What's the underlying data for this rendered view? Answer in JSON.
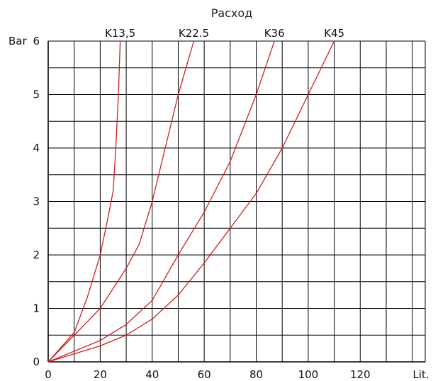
{
  "chart_data": {
    "type": "line",
    "title": "Расход",
    "xlabel": "Lit.",
    "ylabel": "Bar",
    "xlim": [
      0,
      145
    ],
    "ylim": [
      0,
      6
    ],
    "x_ticks": [
      0,
      20,
      40,
      60,
      80,
      100,
      120
    ],
    "y_ticks": [
      0,
      1,
      2,
      3,
      4,
      5,
      6
    ],
    "grid": true,
    "line_color": "#d02020",
    "series": [
      {
        "name": "K13,5",
        "points": [
          [
            0,
            0
          ],
          [
            10,
            0.55
          ],
          [
            15,
            1.2
          ],
          [
            20,
            2.0
          ],
          [
            23,
            2.7
          ],
          [
            25,
            3.2
          ],
          [
            26,
            4
          ],
          [
            27,
            5
          ],
          [
            27.7,
            6
          ]
        ]
      },
      {
        "name": "K22.5",
        "points": [
          [
            0,
            0
          ],
          [
            10,
            0.5
          ],
          [
            20,
            1.0
          ],
          [
            30,
            1.75
          ],
          [
            35,
            2.2
          ],
          [
            40,
            3.0
          ],
          [
            45,
            4.0
          ],
          [
            50,
            5.0
          ],
          [
            56,
            6
          ]
        ]
      },
      {
        "name": "K36",
        "points": [
          [
            0,
            0
          ],
          [
            20,
            0.4
          ],
          [
            30,
            0.7
          ],
          [
            40,
            1.15
          ],
          [
            50,
            2.0
          ],
          [
            60,
            2.8
          ],
          [
            70,
            3.75
          ],
          [
            80,
            5.0
          ],
          [
            87,
            6
          ]
        ]
      },
      {
        "name": "K45",
        "points": [
          [
            0,
            0
          ],
          [
            20,
            0.3
          ],
          [
            30,
            0.5
          ],
          [
            40,
            0.8
          ],
          [
            50,
            1.25
          ],
          [
            60,
            1.85
          ],
          [
            70,
            2.5
          ],
          [
            80,
            3.15
          ],
          [
            90,
            4.0
          ],
          [
            100,
            5.0
          ],
          [
            110,
            6
          ]
        ]
      }
    ]
  }
}
